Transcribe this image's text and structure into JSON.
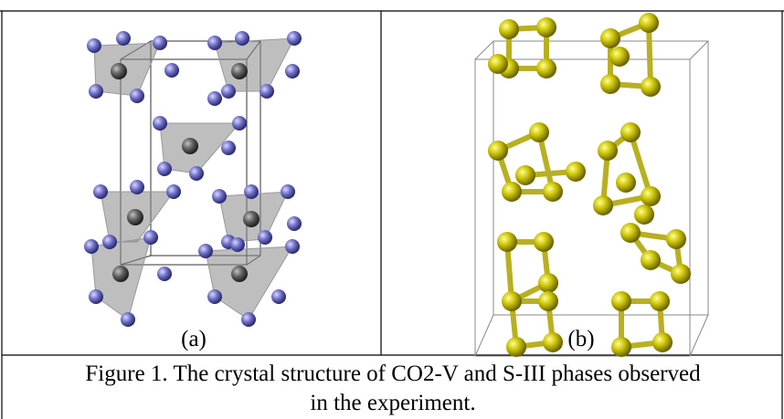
{
  "panels": [
    {
      "label": "(a)"
    },
    {
      "label": "(b)"
    }
  ],
  "caption": "Figure 1. The crystal structure of CO2-V and S-III phases observed in the experiment."
}
